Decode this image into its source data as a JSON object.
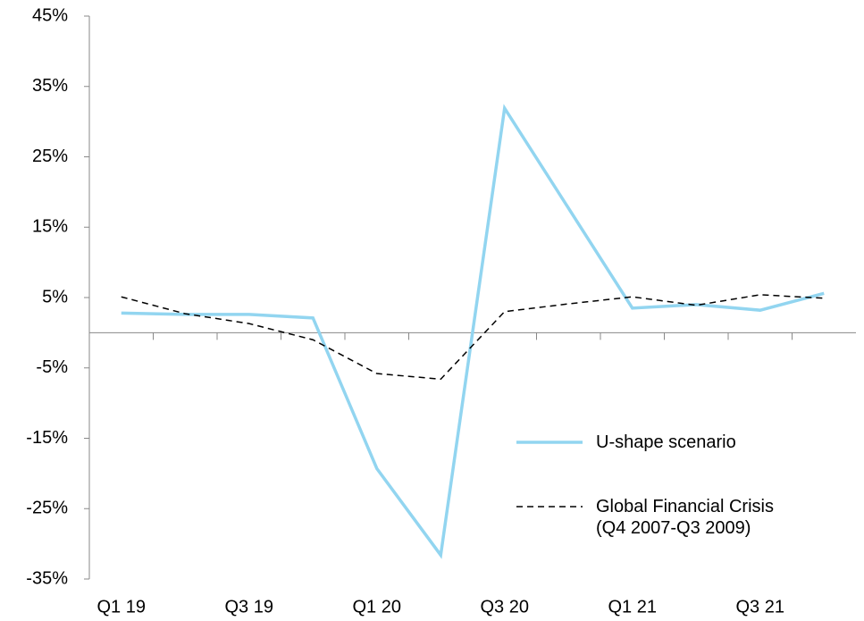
{
  "chart_data": {
    "type": "line",
    "categories": [
      "Q1 19",
      null,
      "Q3 19",
      null,
      "Q1 20",
      null,
      "Q3 20",
      null,
      "Q1 21",
      null,
      "Q3 21",
      null
    ],
    "series": [
      {
        "name": "U-shape scenario",
        "color": "#92d5f0",
        "dash": false,
        "values": [
          2.8,
          2.6,
          2.6,
          2.1,
          -19.3,
          -31.6,
          31.9,
          17.7,
          3.5,
          4.0,
          3.2,
          5.6
        ]
      },
      {
        "name": "Global Financial Crisis\n(Q4 2007-Q3 2009)",
        "color": "#000000",
        "dash": true,
        "values": [
          5.1,
          2.7,
          1.3,
          -1.0,
          -5.8,
          -6.6,
          3.0,
          4.1,
          5.1,
          3.9,
          5.4,
          4.9
        ]
      }
    ],
    "ylim": [
      -35,
      45
    ],
    "yticks": [
      {
        "value": -35,
        "label": "-35%"
      },
      {
        "value": -25,
        "label": "-25%"
      },
      {
        "value": -15,
        "label": "-15%"
      },
      {
        "value": -5,
        "label": "-5%"
      },
      {
        "value": 5,
        "label": "5%"
      },
      {
        "value": 15,
        "label": "15%"
      },
      {
        "value": 25,
        "label": "25%"
      },
      {
        "value": 35,
        "label": "35%"
      },
      {
        "value": 45,
        "label": "45%"
      }
    ],
    "legend": "lower right"
  }
}
